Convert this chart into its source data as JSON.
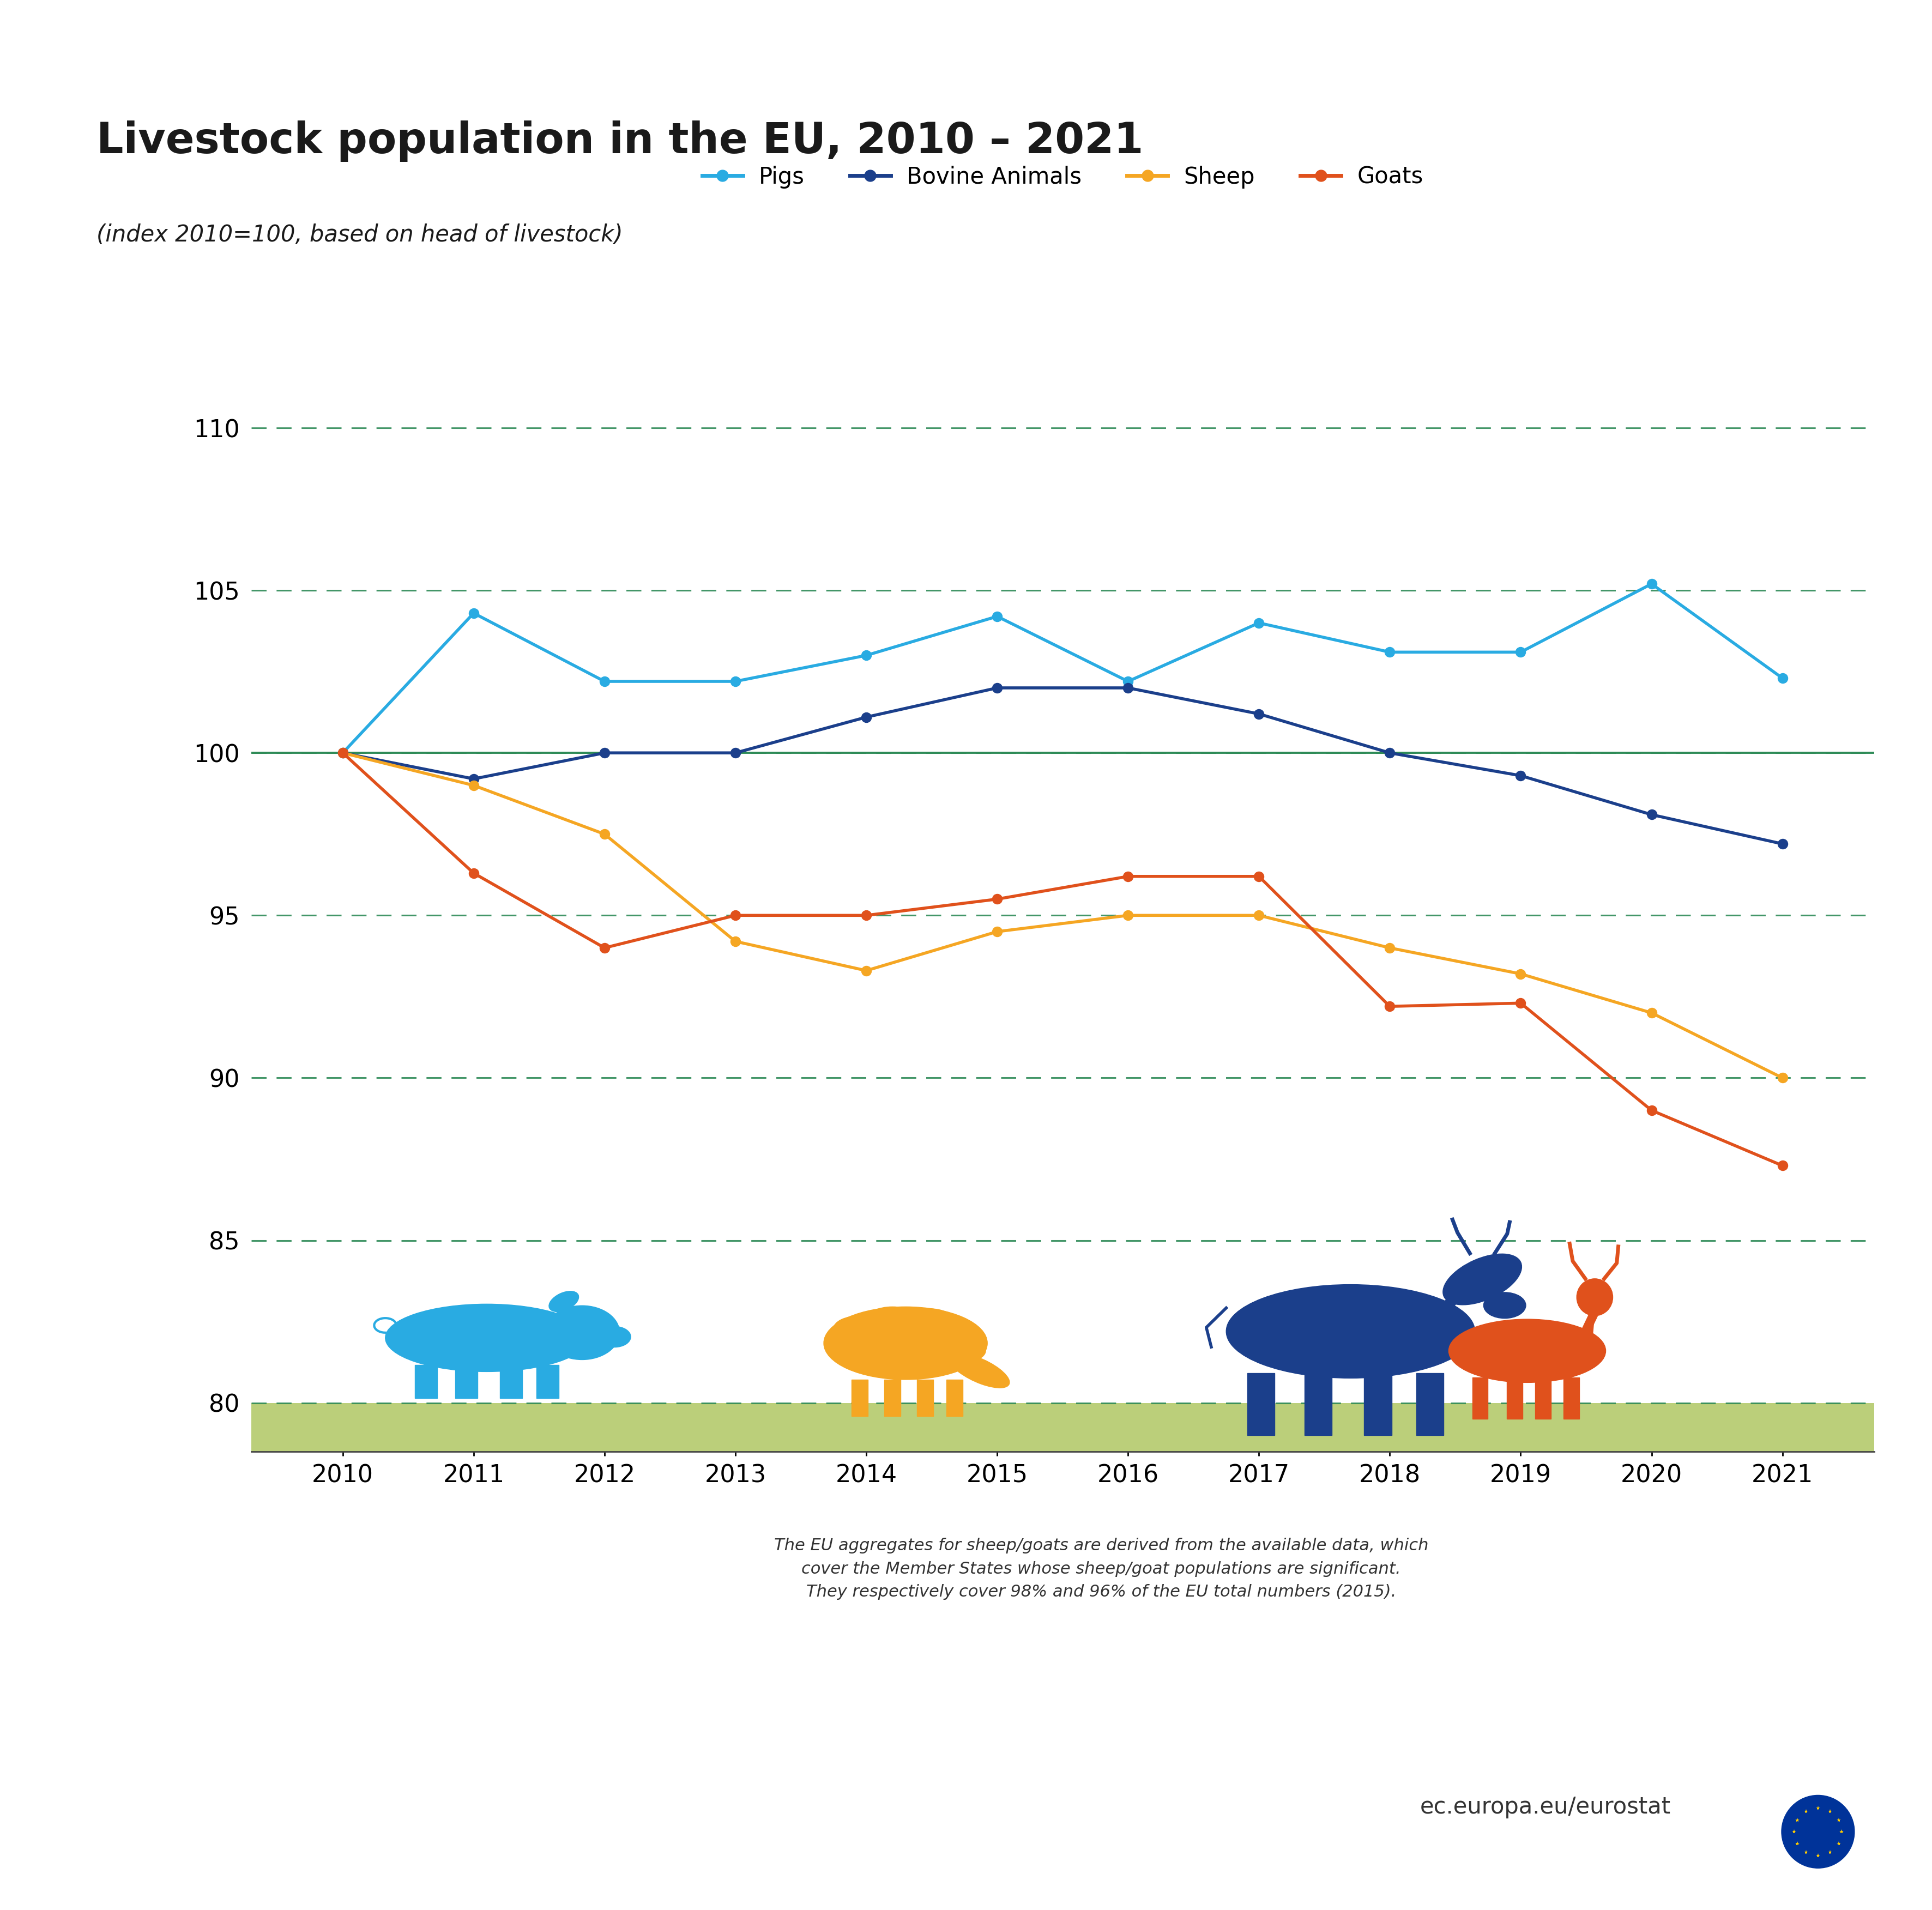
{
  "title": "Livestock population in the EU, 2010 – 2021",
  "subtitle": "(index 2010=100, based on head of livestock)",
  "years": [
    2010,
    2011,
    2012,
    2013,
    2014,
    2015,
    2016,
    2017,
    2018,
    2019,
    2020,
    2021
  ],
  "pigs": [
    100.0,
    104.3,
    102.2,
    102.2,
    103.0,
    104.2,
    102.2,
    104.0,
    103.1,
    103.1,
    105.2,
    102.3
  ],
  "bovine": [
    100.0,
    99.2,
    100.0,
    100.0,
    101.1,
    102.0,
    102.0,
    101.2,
    100.0,
    99.3,
    98.1,
    97.2
  ],
  "sheep": [
    100.0,
    99.0,
    97.5,
    94.2,
    93.3,
    94.5,
    95.0,
    95.0,
    94.0,
    93.2,
    92.0,
    90.0
  ],
  "goats": [
    100.0,
    96.3,
    94.0,
    95.0,
    95.0,
    95.5,
    96.2,
    96.2,
    92.2,
    92.3,
    89.0,
    87.3
  ],
  "pigs_color": "#29ABE2",
  "bovine_color": "#1B3F8B",
  "sheep_color": "#F5A623",
  "goats_color": "#E0511C",
  "background_color": "#FFFFFF",
  "grass_color": "#BBCF7A",
  "grid_color": "#2E8B57",
  "solid_line_color": "#2E8B57",
  "ylim_min": 78.5,
  "ylim_max": 112.0,
  "yticks": [
    80,
    85,
    90,
    95,
    100,
    105,
    110
  ],
  "footer_text": "The EU aggregates for sheep/goats are derived from the available data, which\ncover the Member States whose sheep/goat populations are significant.\nThey respectively cover 98% and 96% of the EU total numbers (2015).",
  "eurostat_text": "ec.europa.eu/eurostat",
  "title_fontsize": 56,
  "subtitle_fontsize": 30,
  "tick_fontsize": 32,
  "legend_fontsize": 30,
  "footer_fontsize": 22,
  "eurostat_fontsize": 30,
  "line_width": 4.0,
  "marker_size": 13
}
